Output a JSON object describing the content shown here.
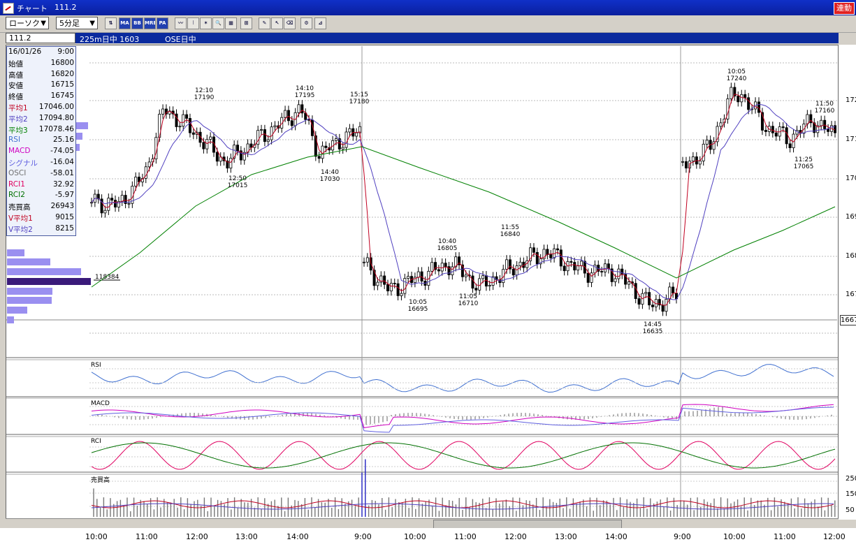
{
  "window": {
    "title": "チャート",
    "value": "111.2",
    "link_button": "連動"
  },
  "toolbar": {
    "chart_type": "ローソク",
    "interval": "5分足",
    "buttons": [
      {
        "name": "compare-icon",
        "label": "⇅"
      },
      {
        "name": "ma-button",
        "label": "MA"
      },
      {
        "name": "bb-button",
        "label": "BB"
      },
      {
        "name": "mre-button",
        "label": "MRE"
      },
      {
        "name": "pa-button",
        "label": "PA"
      },
      {
        "name": "line-chart-icon",
        "label": "〰"
      },
      {
        "name": "candle-chart-icon",
        "label": "⫶"
      },
      {
        "name": "star-icon",
        "label": "✶"
      },
      {
        "name": "zoom-icon",
        "label": "🔍"
      },
      {
        "name": "grid-icon",
        "label": "▦"
      },
      {
        "name": "split-icon",
        "label": "⊞"
      },
      {
        "name": "pencil-icon",
        "label": "✎"
      },
      {
        "name": "cursor-icon",
        "label": "↖"
      },
      {
        "name": "eraser-icon",
        "label": "⌫"
      },
      {
        "name": "settings-icon",
        "label": "⚙"
      },
      {
        "name": "measure-icon",
        "label": "⊿"
      }
    ]
  },
  "infobar": {
    "code": "111.2",
    "instrument": "225m日中 1603",
    "session": "OSE日中"
  },
  "databox": [
    {
      "k": "16/01/26",
      "v": "9:00",
      "color": "#000000"
    },
    {
      "k": "始値",
      "v": "16800",
      "color": "#000000"
    },
    {
      "k": "高値",
      "v": "16820",
      "color": "#000000"
    },
    {
      "k": "安値",
      "v": "16715",
      "color": "#000000"
    },
    {
      "k": "終値",
      "v": "16745",
      "color": "#000000"
    },
    {
      "k": "平均1",
      "v": "17046.00",
      "color": "#c00020"
    },
    {
      "k": "平均2",
      "v": "17094.80",
      "color": "#5040c0"
    },
    {
      "k": "平均3",
      "v": "17078.46",
      "color": "#008000"
    },
    {
      "k": "RSI",
      "v": "25.16",
      "color": "#4070d0"
    },
    {
      "k": "MACD",
      "v": "-74.05",
      "color": "#d000c0"
    },
    {
      "k": "シグナル",
      "v": "-16.04",
      "color": "#6060e0"
    },
    {
      "k": "OSCI",
      "v": "-58.01",
      "color": "#707070"
    },
    {
      "k": "RCI1",
      "v": "32.92",
      "color": "#e00060"
    },
    {
      "k": "RCI2",
      "v": "-5.97",
      "color": "#007000"
    },
    {
      "k": "売買高",
      "v": "26943",
      "color": "#000000"
    },
    {
      "k": "V平均1",
      "v": "9015",
      "color": "#c00020"
    },
    {
      "k": "V平均2",
      "v": "8215",
      "color": "#5040c0"
    }
  ],
  "volume_profile_label": "118384",
  "price_tag": "1667",
  "right_scale": [
    "172",
    "171",
    "170",
    "169",
    "168",
    "167",
    "166"
  ],
  "panels": {
    "rsi": "RSI",
    "macd": "MACD",
    "rci": "RCI",
    "volume": "売買高"
  },
  "volume_scale": [
    "250",
    "150",
    "50"
  ],
  "time_labels": [
    "10:00",
    "11:00",
    "12:00",
    "13:00",
    "14:00",
    "9:00",
    "10:00",
    "11:00",
    "12:00",
    "13:00",
    "14:00",
    "9:00",
    "10:00",
    "11:00",
    "12:00"
  ],
  "annotations": [
    {
      "time": "12:10",
      "price": "17190"
    },
    {
      "time": "14:10",
      "price": "17195"
    },
    {
      "time": "15:15",
      "price": "17180"
    },
    {
      "time": "12:50",
      "price": "17015"
    },
    {
      "time": "14:40",
      "price": "17030"
    },
    {
      "time": "10:40",
      "price": "16805"
    },
    {
      "time": "11:55",
      "price": "16840"
    },
    {
      "time": "10:05",
      "price": "16695"
    },
    {
      "time": "11:05",
      "price": "16710"
    },
    {
      "time": "14:45",
      "price": "16635"
    },
    {
      "time": "10:05",
      "price": "17240"
    },
    {
      "time": "11:50",
      "price": "17160"
    },
    {
      "time": "11:25",
      "price": "17065"
    }
  ]
}
